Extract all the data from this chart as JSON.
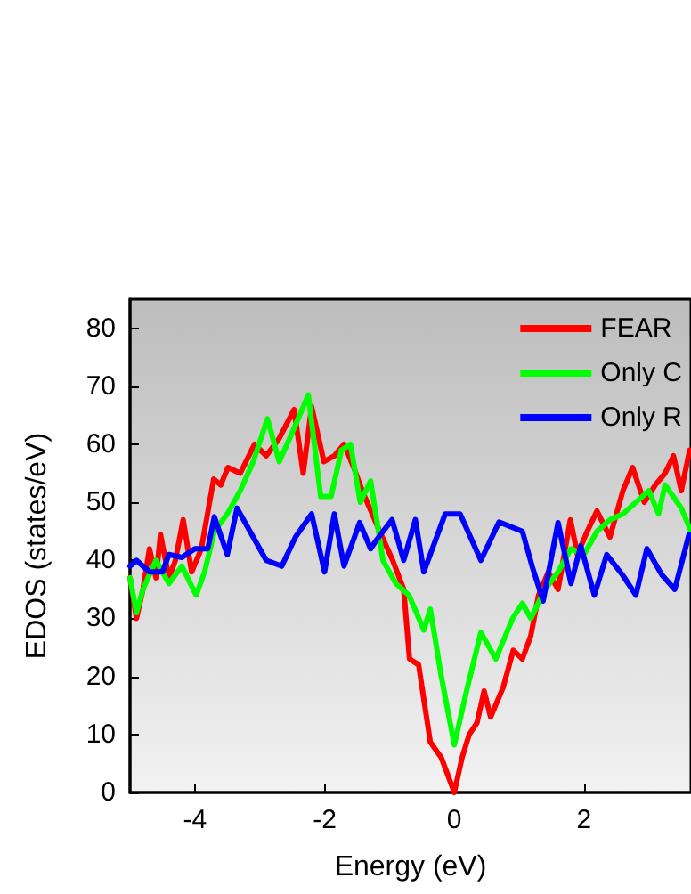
{
  "chart_data": {
    "type": "line",
    "xlabel": "Energy (eV)",
    "ylabel": "EDOS (states/eV)",
    "xlim": [
      -5,
      3.65
    ],
    "xticks": [
      -4,
      -2,
      0,
      2
    ],
    "ylim": [
      0,
      85
    ],
    "yticks": [
      0,
      10,
      20,
      30,
      40,
      50,
      60,
      70,
      80
    ],
    "legend": "top right",
    "grid": false,
    "marker": "none",
    "line_style": "solid",
    "series": [
      {
        "name": "FEAR",
        "color": "#ff0000",
        "x": [
          -5,
          -4.9,
          -4.8,
          -4.7,
          -4.6,
          -4.53,
          -4.4,
          -4.3,
          -4.18,
          -4.05,
          -3.9,
          -3.71,
          -3.6,
          -3.49,
          -3.3,
          -3.08,
          -2.9,
          -2.7,
          -2.47,
          -2.33,
          -2.2,
          -2.01,
          -1.85,
          -1.7,
          -1.55,
          -1.42,
          -1.15,
          -0.95,
          -0.78,
          -0.69,
          -0.55,
          -0.37,
          -0.2,
          0,
          0.12,
          0.23,
          0.35,
          0.46,
          0.56,
          0.75,
          0.91,
          1.05,
          1.18,
          1.3,
          1.45,
          1.6,
          1.79,
          1.9,
          2.05,
          2.2,
          2.4,
          2.6,
          2.75,
          2.93,
          3.1,
          3.25,
          3.38,
          3.5,
          3.63
        ],
        "values": [
          37,
          30,
          35,
          42,
          37,
          44.5,
          37,
          40,
          47,
          38,
          42,
          54,
          53,
          56,
          55,
          60,
          58,
          61,
          66,
          55,
          66.5,
          57,
          58,
          60,
          56,
          52,
          45,
          40,
          35,
          23,
          22,
          8.7,
          6,
          0,
          6,
          10,
          12,
          17.5,
          13,
          18,
          24.5,
          23,
          27,
          34,
          38,
          35,
          47,
          41,
          45,
          48.5,
          44,
          52,
          56,
          50,
          53,
          55,
          58,
          52,
          59
        ]
      },
      {
        "name": "Only C",
        "color": "#00ff00",
        "x": [
          -5,
          -4.9,
          -4.8,
          -4.6,
          -4.4,
          -4.2,
          -3.98,
          -3.85,
          -3.7,
          -3.5,
          -3.3,
          -3.1,
          -2.88,
          -2.7,
          -2.5,
          -2.25,
          -2.06,
          -1.9,
          -1.74,
          -1.6,
          -1.45,
          -1.29,
          -1.1,
          -0.9,
          -0.7,
          -0.47,
          -0.37,
          -0.2,
          0,
          0.2,
          0.41,
          0.64,
          0.9,
          1.05,
          1.18,
          1.4,
          1.6,
          1.8,
          2.0,
          2.2,
          2.4,
          2.6,
          2.8,
          3.0,
          3.15,
          3.25,
          3.5,
          3.65
        ],
        "values": [
          37,
          31,
          35,
          40,
          36,
          39,
          34,
          38,
          45,
          48,
          52,
          57,
          64.4,
          57,
          62,
          68.5,
          51,
          51,
          59,
          60,
          50,
          53.7,
          40,
          36,
          34,
          28,
          31.6,
          20,
          8.2,
          18,
          27.6,
          23,
          30,
          32.6,
          30,
          35,
          38,
          42,
          41,
          45,
          47,
          48,
          50,
          52,
          48,
          53,
          49,
          45
        ]
      },
      {
        "name": "Only R",
        "color": "#0000ff",
        "x": [
          -5,
          -4.9,
          -4.7,
          -4.5,
          -4.4,
          -4.2,
          -4.0,
          -3.8,
          -3.7,
          -3.5,
          -3.35,
          -3.1,
          -2.9,
          -2.66,
          -2.45,
          -2.2,
          -2.0,
          -1.85,
          -1.7,
          -1.46,
          -1.29,
          -1.2,
          -0.96,
          -0.78,
          -0.6,
          -0.47,
          -0.14,
          0.09,
          0.25,
          0.41,
          0.69,
          1.05,
          1.2,
          1.37,
          1.6,
          1.8,
          1.95,
          2.16,
          2.35,
          2.6,
          2.8,
          2.97,
          3.2,
          3.4,
          3.62
        ],
        "values": [
          39,
          40,
          38,
          38,
          41,
          40.5,
          42,
          42,
          47.5,
          41,
          49,
          44,
          40,
          39,
          44,
          48,
          38,
          48,
          39,
          46.5,
          42,
          43.5,
          47,
          40,
          47,
          38,
          48,
          48,
          44,
          40,
          46.6,
          45,
          39,
          33,
          46.5,
          36,
          42.5,
          34,
          41,
          37.4,
          34,
          42,
          37.5,
          35,
          44.5
        ]
      }
    ]
  }
}
